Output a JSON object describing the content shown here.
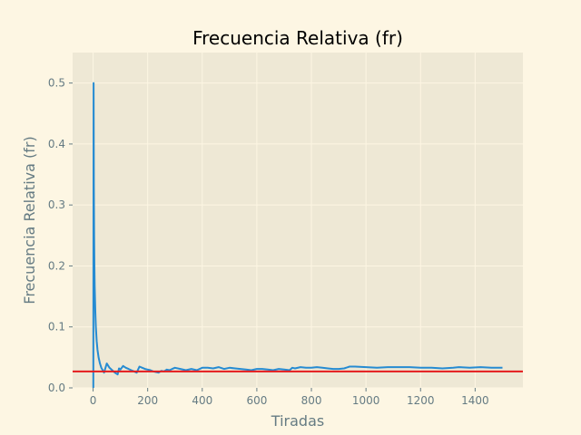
{
  "chart_data": {
    "type": "line",
    "title": "Frecuencia Relativa (fr)",
    "xlabel": "Tiradas",
    "ylabel": "Frecuencia Relativa (fr)",
    "xlim": [
      -75,
      1575
    ],
    "ylim": [
      0,
      0.55
    ],
    "x_ticks": [
      0,
      200,
      400,
      600,
      800,
      1000,
      1200,
      1400
    ],
    "x_tick_labels": [
      "0",
      "200",
      "400",
      "600",
      "800",
      "1000",
      "1200",
      "1400"
    ],
    "y_ticks": [
      0.0,
      0.1,
      0.2,
      0.3,
      0.4,
      0.5
    ],
    "y_tick_labels": [
      "0.0",
      "0.1",
      "0.2",
      "0.3",
      "0.4",
      "0.5"
    ],
    "grid": true,
    "series": [
      {
        "color": "#268bd2",
        "x": [
          1,
          2,
          3,
          4,
          5,
          6,
          8,
          10,
          13,
          16,
          20,
          25,
          30,
          40,
          50,
          60,
          70,
          80,
          90,
          95,
          100,
          110,
          120,
          130,
          140,
          150,
          160,
          165,
          170,
          180,
          190,
          200,
          210,
          220,
          230,
          240,
          250,
          260,
          270,
          280,
          290,
          300,
          320,
          340,
          360,
          380,
          400,
          420,
          440,
          460,
          480,
          500,
          520,
          540,
          560,
          580,
          600,
          620,
          640,
          660,
          680,
          700,
          720,
          730,
          740,
          760,
          780,
          800,
          820,
          840,
          860,
          880,
          900,
          920,
          940,
          960,
          1000,
          1040,
          1080,
          1120,
          1160,
          1200,
          1240,
          1280,
          1320,
          1340,
          1380,
          1420,
          1460,
          1500
        ],
        "y": [
          0.0,
          0.5,
          0.333,
          0.25,
          0.2,
          0.167,
          0.125,
          0.1,
          0.077,
          0.0625,
          0.05,
          0.04,
          0.033,
          0.025,
          0.04,
          0.033,
          0.029,
          0.025,
          0.022,
          0.032,
          0.03,
          0.036,
          0.033,
          0.031,
          0.029,
          0.027,
          0.025,
          0.03,
          0.035,
          0.033,
          0.031,
          0.03,
          0.029,
          0.027,
          0.026,
          0.025,
          0.028,
          0.027,
          0.03,
          0.029,
          0.031,
          0.033,
          0.031,
          0.029,
          0.031,
          0.029,
          0.033,
          0.033,
          0.032,
          0.034,
          0.031,
          0.033,
          0.032,
          0.031,
          0.03,
          0.029,
          0.031,
          0.031,
          0.03,
          0.029,
          0.031,
          0.03,
          0.029,
          0.033,
          0.032,
          0.034,
          0.033,
          0.033,
          0.034,
          0.033,
          0.032,
          0.031,
          0.031,
          0.032,
          0.035,
          0.035,
          0.034,
          0.033,
          0.034,
          0.034,
          0.034,
          0.033,
          0.033,
          0.032,
          0.033,
          0.034,
          0.033,
          0.034,
          0.033,
          0.033
        ]
      }
    ],
    "reference_line": {
      "y": 0.027,
      "color": "#e41a1c"
    }
  },
  "colors": {
    "page_background": "#fdf6e3",
    "plot_background": "#eee8d5",
    "grid": "#fdf6e3",
    "text": "#657b83",
    "title": "#000000"
  }
}
